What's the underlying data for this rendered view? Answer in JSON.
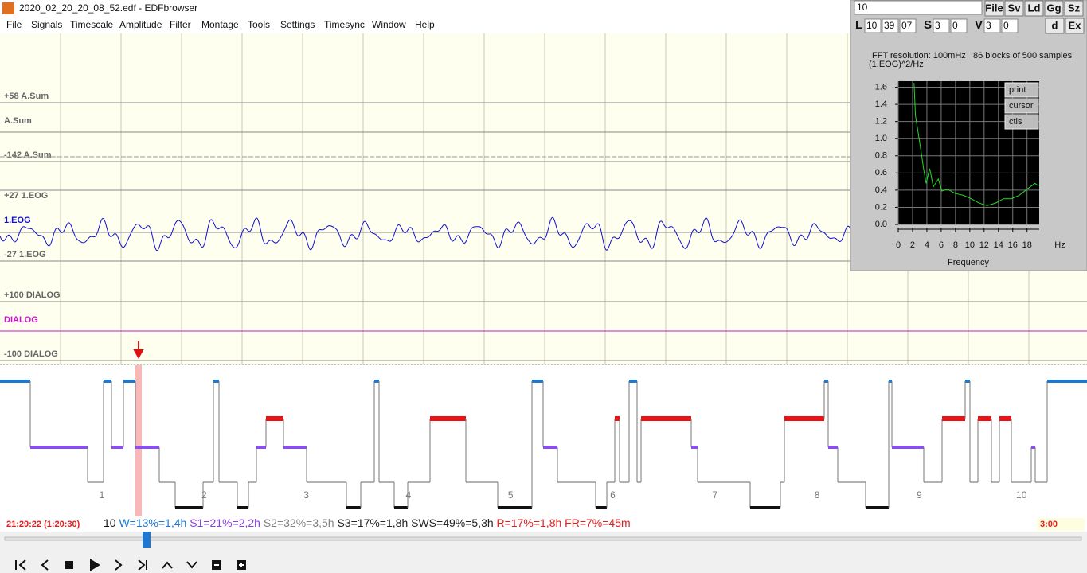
{
  "window": {
    "title": "2020_02_20_20_08_52.edf - EDFbrowser"
  },
  "menu": [
    "File",
    "Signals",
    "Timescale",
    "Amplitude",
    "Filter",
    "Montage",
    "Tools",
    "Settings",
    "Timesync",
    "Window",
    "Help"
  ],
  "signals": [
    {
      "upper": "+58 A.Sum",
      "name": "A.Sum",
      "lower": "-142 A.Sum"
    },
    {
      "upper": "+27 1.EOG",
      "name": "1.EOG",
      "lower": "-27 1.EOG"
    },
    {
      "upper": "+100 DIALOG",
      "name": "DIALOG",
      "lower": "-100 DIALOG"
    }
  ],
  "fft_panel": {
    "input": "10",
    "buttons": [
      "File",
      "Sv",
      "Ld",
      "Gg",
      "Sz"
    ],
    "time_controls": [
      {
        "label": "L",
        "fields": [
          "10",
          "39",
          "07"
        ]
      },
      {
        "label": "S",
        "fields": [
          "3",
          "0"
        ]
      },
      {
        "label": "V",
        "fields": [
          "3",
          "0"
        ]
      }
    ],
    "row2_buttons": [
      "d",
      "Ex"
    ],
    "info": "FFT resolution: 100mHz   86 blocks of 500 samples",
    "unit_label": "(1.EOG)^2/Hz",
    "plot_buttons": [
      "print",
      "cursor",
      "ctls"
    ]
  },
  "chart_data": {
    "type": "line",
    "x_label": "Frequency",
    "x_unit": "Hz",
    "color": "#22dd22",
    "x": [
      2.2,
      2.4,
      3,
      3.6,
      3.9,
      4.4,
      4.9,
      5.6,
      6.1,
      6.9,
      8,
      9.1,
      10.2,
      11.3,
      12.4,
      13.6,
      14.7,
      15.8,
      16.9,
      18,
      19.1,
      19.6
    ],
    "values": [
      1.65,
      1.27,
      0.95,
      0.62,
      0.48,
      0.65,
      0.44,
      0.53,
      0.39,
      0.41,
      0.36,
      0.34,
      0.3,
      0.25,
      0.22,
      0.25,
      0.3,
      0.3,
      0.34,
      0.41,
      0.48,
      0.45
    ],
    "xlim": [
      0,
      19.7
    ],
    "ylim": [
      0,
      1.67
    ],
    "xticks": [
      0,
      2,
      4,
      6,
      8,
      10,
      12,
      14,
      16,
      18
    ],
    "yticks": [
      {
        "value": 0,
        "label": "0.0"
      },
      0.2,
      0.4,
      0.6,
      0.8,
      {
        "value": 1,
        "label": "1.0"
      },
      1.2,
      1.4,
      1.6
    ],
    "grid": true
  },
  "hypnogram": {
    "hours": [
      "1",
      "2",
      "3",
      "4",
      "5",
      "6",
      "7",
      "8",
      "9",
      "10"
    ],
    "time_left": "21:29:22 (1:20:30)",
    "time_right": "3:00",
    "stats": [
      {
        "text": "10",
        "color": "#111111"
      },
      {
        "text": "W=13%=1,4h",
        "color": "#1e78d2"
      },
      {
        "text": "S1=21%=2,2h",
        "color": "#8a3fe0"
      },
      {
        "text": "S2=32%=3,5h",
        "color": "#808080"
      },
      {
        "text": "S3=17%=1,8h",
        "color": "#222222"
      },
      {
        "text": "SWS=49%=5,3h",
        "color": "#222222"
      },
      {
        "text": "R=17%=1,8h",
        "color": "#e02020"
      },
      {
        "text": "FR=7%=45m",
        "color": "#e02020"
      }
    ]
  }
}
